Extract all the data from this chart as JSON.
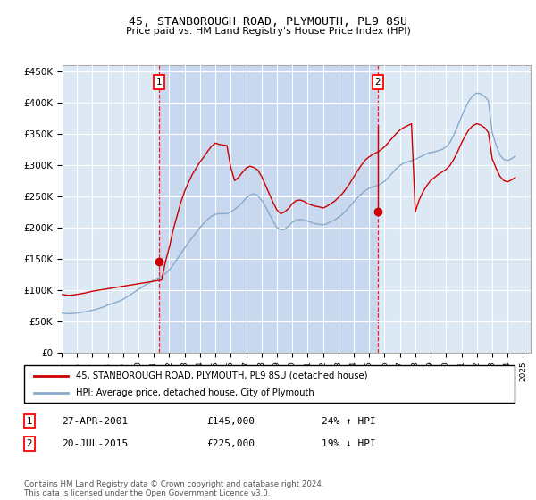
{
  "title": "45, STANBOROUGH ROAD, PLYMOUTH, PL9 8SU",
  "subtitle": "Price paid vs. HM Land Registry's House Price Index (HPI)",
  "background_color": "#dce9f5",
  "plot_bg_color": "#dce9f5",
  "highlight_bg": "#c8d8ee",
  "ylim": [
    0,
    460000
  ],
  "yticks": [
    0,
    50000,
    100000,
    150000,
    200000,
    250000,
    300000,
    350000,
    400000,
    450000
  ],
  "ytick_labels": [
    "£0",
    "£50K",
    "£100K",
    "£150K",
    "£200K",
    "£250K",
    "£300K",
    "£350K",
    "£400K",
    "£450K"
  ],
  "sale1_date": 2001.32,
  "sale1_price": 145000,
  "sale2_date": 2015.55,
  "sale2_price": 225000,
  "legend_entry1": "45, STANBOROUGH ROAD, PLYMOUTH, PL9 8SU (detached house)",
  "legend_entry2": "HPI: Average price, detached house, City of Plymouth",
  "table_row1": [
    "1",
    "27-APR-2001",
    "£145,000",
    "24% ↑ HPI"
  ],
  "table_row2": [
    "2",
    "20-JUL-2015",
    "£225,000",
    "19% ↓ HPI"
  ],
  "footer": "Contains HM Land Registry data © Crown copyright and database right 2024.\nThis data is licensed under the Open Government Licence v3.0.",
  "red_color": "#cc0000",
  "blue_color": "#88aacc",
  "hpi_years": [
    1995,
    1995.25,
    1995.5,
    1995.75,
    1996,
    1996.25,
    1996.5,
    1996.75,
    1997,
    1997.25,
    1997.5,
    1997.75,
    1998,
    1998.25,
    1998.5,
    1998.75,
    1999,
    1999.25,
    1999.5,
    1999.75,
    2000,
    2000.25,
    2000.5,
    2000.75,
    2001,
    2001.25,
    2001.5,
    2001.75,
    2002,
    2002.25,
    2002.5,
    2002.75,
    2003,
    2003.25,
    2003.5,
    2003.75,
    2004,
    2004.25,
    2004.5,
    2004.75,
    2005,
    2005.25,
    2005.5,
    2005.75,
    2006,
    2006.25,
    2006.5,
    2006.75,
    2007,
    2007.25,
    2007.5,
    2007.75,
    2008,
    2008.25,
    2008.5,
    2008.75,
    2009,
    2009.25,
    2009.5,
    2009.75,
    2010,
    2010.25,
    2010.5,
    2010.75,
    2011,
    2011.25,
    2011.5,
    2011.75,
    2012,
    2012.25,
    2012.5,
    2012.75,
    2013,
    2013.25,
    2013.5,
    2013.75,
    2014,
    2014.25,
    2014.5,
    2014.75,
    2015,
    2015.25,
    2015.5,
    2015.75,
    2016,
    2016.25,
    2016.5,
    2016.75,
    2017,
    2017.25,
    2017.5,
    2017.75,
    2018,
    2018.25,
    2018.5,
    2018.75,
    2019,
    2019.25,
    2019.5,
    2019.75,
    2020,
    2020.25,
    2020.5,
    2020.75,
    2021,
    2021.25,
    2021.5,
    2021.75,
    2022,
    2022.25,
    2022.5,
    2022.75,
    2023,
    2023.25,
    2023.5,
    2023.75,
    2024,
    2024.25,
    2024.5
  ],
  "hpi_values": [
    63000,
    62500,
    62000,
    62500,
    63000,
    64000,
    65000,
    66000,
    67500,
    69000,
    71000,
    73000,
    76000,
    78000,
    80000,
    82000,
    85000,
    89000,
    93000,
    97000,
    101000,
    105000,
    109000,
    112000,
    116000,
    119000,
    122000,
    126000,
    132000,
    140000,
    149000,
    158000,
    167000,
    176000,
    184000,
    192000,
    200000,
    207000,
    213000,
    218000,
    221000,
    222000,
    222000,
    222000,
    225000,
    229000,
    234000,
    240000,
    247000,
    252000,
    254000,
    251000,
    244000,
    234000,
    222000,
    210000,
    200000,
    196000,
    197000,
    202000,
    208000,
    212000,
    213000,
    212000,
    210000,
    208000,
    206000,
    205000,
    204000,
    206000,
    209000,
    212000,
    216000,
    221000,
    227000,
    234000,
    241000,
    248000,
    254000,
    259000,
    263000,
    265000,
    267000,
    270000,
    274000,
    280000,
    287000,
    294000,
    299000,
    303000,
    305000,
    307000,
    309000,
    312000,
    315000,
    318000,
    320000,
    321000,
    323000,
    325000,
    329000,
    336000,
    348000,
    362000,
    377000,
    391000,
    403000,
    411000,
    415000,
    414000,
    410000,
    403000,
    352000,
    332000,
    316000,
    309000,
    307000,
    310000,
    314000
  ],
  "red_years": [
    1995,
    1995.25,
    1995.5,
    1995.75,
    1996,
    1996.25,
    1996.5,
    1996.75,
    1997,
    1997.25,
    1997.5,
    1997.75,
    1998,
    1998.25,
    1998.5,
    1998.75,
    1999,
    1999.25,
    1999.5,
    1999.75,
    2000,
    2000.25,
    2000.5,
    2000.75,
    2001,
    2001.25,
    2001.5,
    2001.75,
    2002,
    2002.25,
    2002.5,
    2002.75,
    2003,
    2003.25,
    2003.5,
    2003.75,
    2004,
    2004.25,
    2004.5,
    2004.75,
    2005,
    2005.25,
    2005.5,
    2005.75,
    2006,
    2006.25,
    2006.5,
    2006.75,
    2007,
    2007.25,
    2007.5,
    2007.75,
    2008,
    2008.25,
    2008.5,
    2008.75,
    2009,
    2009.25,
    2009.5,
    2009.75,
    2010,
    2010.25,
    2010.5,
    2010.75,
    2011,
    2011.25,
    2011.5,
    2011.75,
    2012,
    2012.25,
    2012.5,
    2012.75,
    2013,
    2013.25,
    2013.5,
    2013.75,
    2014,
    2014.25,
    2014.5,
    2014.75,
    2015,
    2015.25,
    2015.5,
    2015.75,
    2016,
    2016.25,
    2016.5,
    2016.75,
    2017,
    2017.25,
    2017.5,
    2017.75,
    2018,
    2018.25,
    2018.5,
    2018.75,
    2019,
    2019.25,
    2019.5,
    2019.75,
    2020,
    2020.25,
    2020.5,
    2020.75,
    2021,
    2021.25,
    2021.5,
    2021.75,
    2022,
    2022.25,
    2022.5,
    2022.75,
    2023,
    2023.25,
    2023.5,
    2023.75,
    2024,
    2024.25,
    2024.5
  ],
  "red_values": [
    93000,
    92000,
    91500,
    92000,
    93000,
    94000,
    95000,
    96500,
    98000,
    99000,
    100000,
    101000,
    102000,
    103000,
    104000,
    105000,
    106000,
    107000,
    108000,
    109000,
    110000,
    111000,
    112000,
    113000,
    114000,
    115000,
    116000,
    145000,
    168000,
    196000,
    218000,
    240000,
    258000,
    272000,
    285000,
    295000,
    305000,
    313000,
    322000,
    330000,
    335000,
    333000,
    332000,
    331000,
    296000,
    275000,
    280000,
    288000,
    295000,
    298000,
    296000,
    292000,
    282000,
    268000,
    254000,
    240000,
    228000,
    222000,
    225000,
    230000,
    238000,
    243000,
    244000,
    242000,
    238000,
    236000,
    234000,
    233000,
    231000,
    234000,
    238000,
    242000,
    248000,
    254000,
    262000,
    271000,
    281000,
    291000,
    300000,
    308000,
    313000,
    317000,
    320000,
    324000,
    329000,
    336000,
    343000,
    350000,
    356000,
    360000,
    363000,
    366000,
    225000,
    244000,
    257000,
    267000,
    275000,
    280000,
    285000,
    289000,
    293000,
    299000,
    309000,
    321000,
    335000,
    347000,
    357000,
    363000,
    366000,
    364000,
    360000,
    352000,
    310000,
    295000,
    282000,
    275000,
    273000,
    276000,
    280000
  ]
}
